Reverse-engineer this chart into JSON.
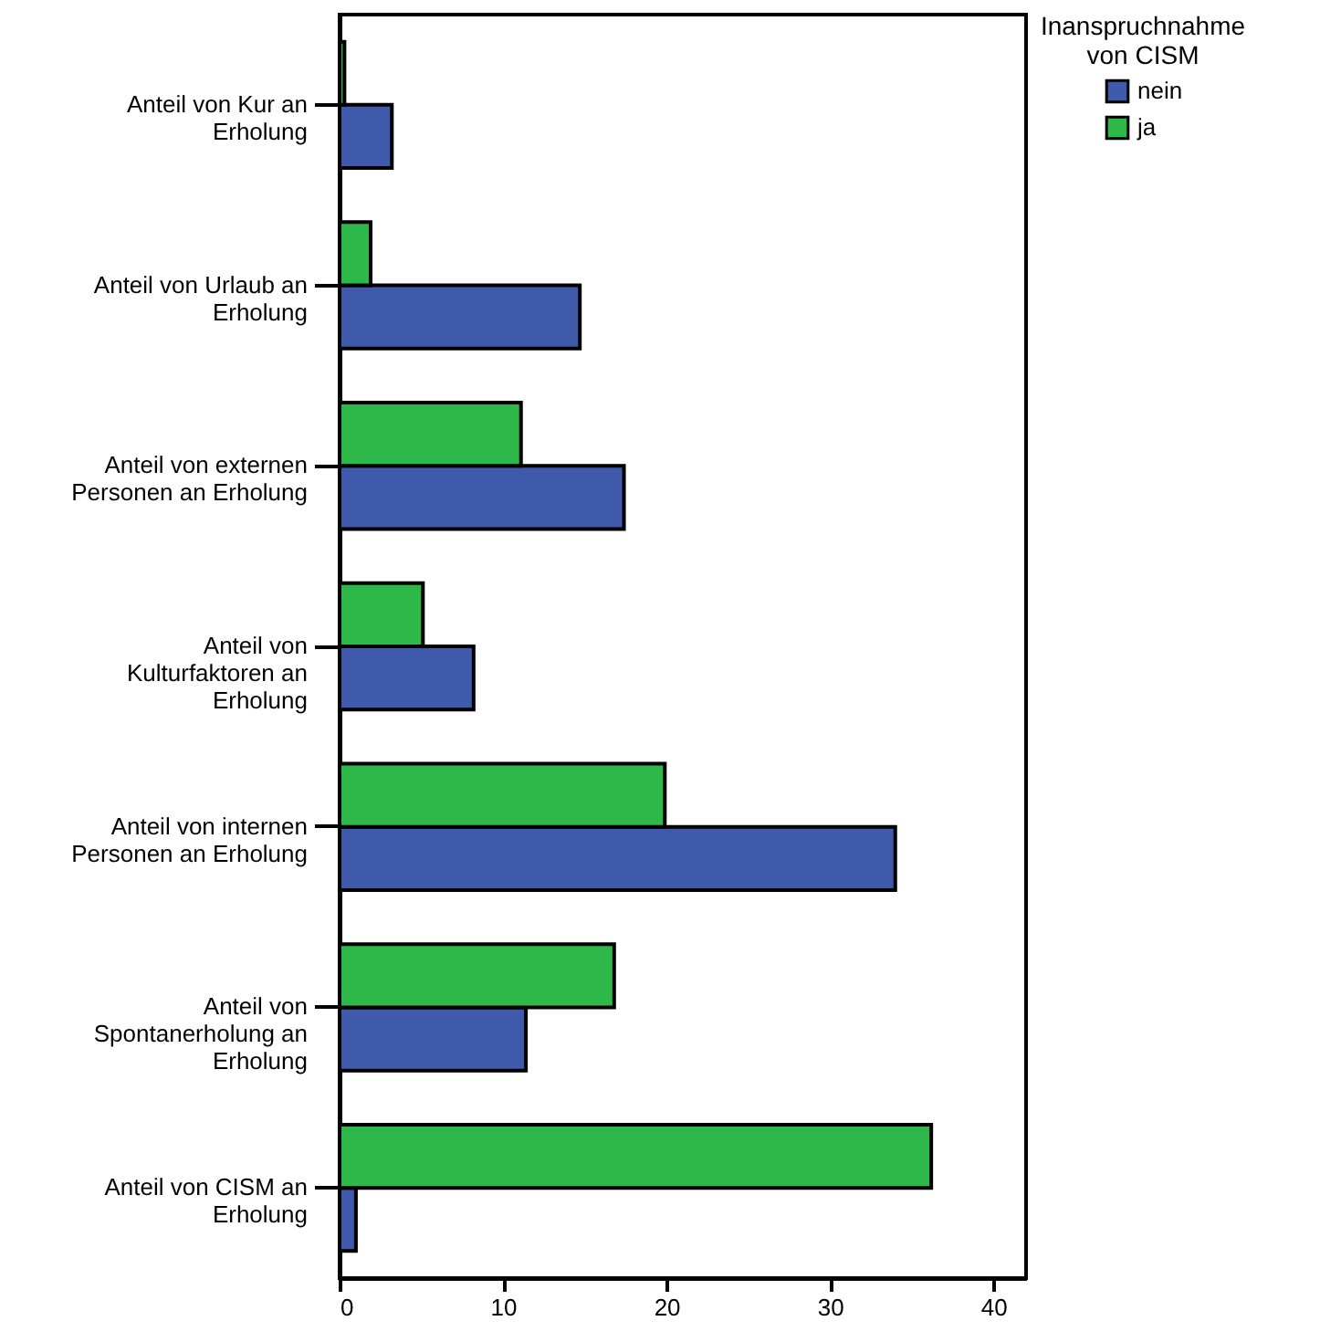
{
  "chart_data": {
    "type": "bar",
    "orientation": "horizontal",
    "legend_title": "Inanspruchnahme von CISM",
    "legend": "top right",
    "grid": false,
    "categories": [
      "Anteil von Kur an Erholung",
      "Anteil von Urlaub an Erholung",
      "Anteil von externen Personen an Erholung",
      "Anteil von Kulturfaktoren an Erholung",
      "Anteil von internen Personen an Erholung",
      "Anteil von Spontanerholung an Erholung",
      "Anteil von CISM an Erholung"
    ],
    "series": [
      {
        "name": "nein",
        "color": "#3f5aab",
        "values": [
          3.2,
          14.7,
          17.4,
          8.2,
          34.0,
          11.4,
          1.0
        ]
      },
      {
        "name": "ja",
        "color": "#2eb84a",
        "values": [
          0.3,
          1.9,
          11.1,
          5.1,
          19.9,
          16.8,
          36.2
        ]
      }
    ],
    "xlim": [
      0,
      42
    ],
    "xticks": [
      0,
      10,
      20,
      30,
      40
    ]
  }
}
